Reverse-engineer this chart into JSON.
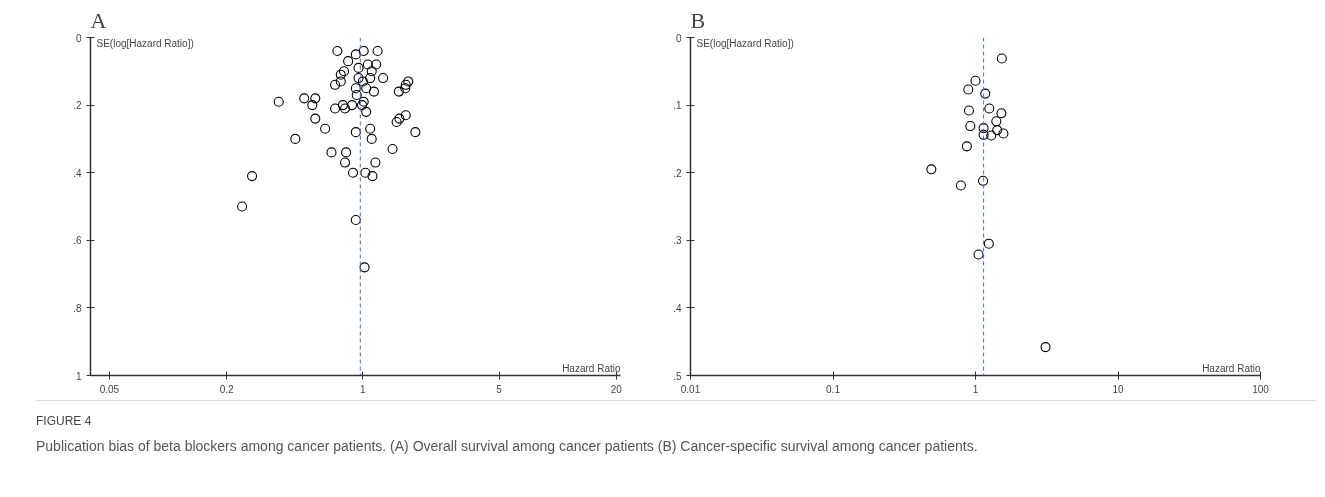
{
  "chart_data": [
    {
      "type": "scatter",
      "title": "A",
      "xlabel": "Hazard Ratio",
      "ylabel": "SE(log[Hazard Ratio])",
      "log": "x",
      "grid": false,
      "marker": "circle",
      "xlim": [
        0.04,
        21
      ],
      "xticks": [
        0.05,
        0.2,
        1,
        5,
        20
      ],
      "ylim": [
        1,
        0
      ],
      "yticks": [
        0,
        {
          "value": 0.2,
          "label": ".2"
        },
        {
          "value": 0.4,
          "label": ".4"
        },
        {
          "value": 0.6,
          "label": ".6"
        },
        {
          "value": 0.8,
          "label": ".8"
        },
        1
      ],
      "ref_lines": [
        {
          "axis": "x",
          "value": 0.97,
          "color": "#4472c4",
          "line_style": "dashed"
        }
      ],
      "series": [
        {
          "color": "#000000",
          "x": [
            0.37,
            0.5,
            0.55,
            0.57,
            0.57,
            0.64,
            0.45,
            0.27,
            0.24,
            0.69,
            0.82,
            0.81,
            0.89,
            1.03,
            1.12,
            1.16,
            1.42,
            0.92,
            1.09,
            1.11,
            0.92,
            1.04,
            1.86,
            1.66,
            1.49,
            1.54,
            1.53,
            1.65,
            1.71,
            1.66,
            1.27,
            0.79,
            0.72,
            0.81,
            0.88,
            0.99,
            1.01,
            0.92,
            0.72,
            0.77,
            0.77,
            0.8,
            0.84,
            0.74,
            0.92,
            0.95,
            1.06,
            1.17,
            1.19,
            1.01,
            1.11,
            1.09,
            1.0,
            0.95,
            1.04,
            1.14,
            0.93,
            1.02
          ],
          "values": [
            0.19,
            0.18,
            0.2,
            0.18,
            0.24,
            0.27,
            0.3,
            0.41,
            0.5,
            0.34,
            0.34,
            0.37,
            0.4,
            0.4,
            0.41,
            0.37,
            0.33,
            0.54,
            0.27,
            0.3,
            0.28,
            0.22,
            0.28,
            0.23,
            0.25,
            0.24,
            0.16,
            0.15,
            0.13,
            0.14,
            0.12,
            0.2,
            0.21,
            0.21,
            0.2,
            0.2,
            0.19,
            0.15,
            0.14,
            0.13,
            0.11,
            0.1,
            0.07,
            0.04,
            0.05,
            0.09,
            0.08,
            0.08,
            0.04,
            0.04,
            0.1,
            0.12,
            0.13,
            0.12,
            0.15,
            0.16,
            0.17,
            0.68
          ]
        }
      ],
      "annotations": [
        "FIGURE 4",
        "Publication bias of beta blockers among cancer patients. (A) Overall survival among cancer patients (B) Cancer-specific survival among cancer patients."
      ]
    },
    {
      "type": "scatter",
      "title": "B",
      "xlabel": "Hazard Ratio",
      "ylabel": "SE(log[Hazard Ratio])",
      "log": "x",
      "grid": false,
      "marker": "circle",
      "xlim": [
        0.01,
        100
      ],
      "xticks": [
        0.01,
        0.1,
        1,
        10,
        100
      ],
      "ylim": [
        0.5,
        0
      ],
      "yticks": [
        0,
        {
          "value": 0.1,
          "label": ".1"
        },
        {
          "value": 0.2,
          "label": ".2"
        },
        {
          "value": 0.3,
          "label": ".3"
        },
        {
          "value": 0.4,
          "label": ".4"
        },
        {
          "value": 0.5,
          "label": ".5"
        }
      ],
      "ref_lines": [
        {
          "axis": "x",
          "value": 1.14,
          "color": "#4472c4",
          "line_style": "dashed"
        }
      ],
      "series": [
        {
          "color": "#000000",
          "x": [
            1.53,
            1.0,
            0.89,
            1.17,
            0.9,
            1.25,
            1.52,
            1.4,
            0.92,
            1.14,
            1.42,
            1.14,
            1.29,
            1.57,
            0.87,
            0.49,
            0.79,
            1.13,
            1.24,
            1.05,
            3.1
          ],
          "values": [
            0.031,
            0.064,
            0.077,
            0.083,
            0.108,
            0.105,
            0.112,
            0.124,
            0.131,
            0.134,
            0.137,
            0.144,
            0.145,
            0.142,
            0.161,
            0.195,
            0.219,
            0.212,
            0.305,
            0.321,
            0.458
          ]
        }
      ]
    }
  ]
}
